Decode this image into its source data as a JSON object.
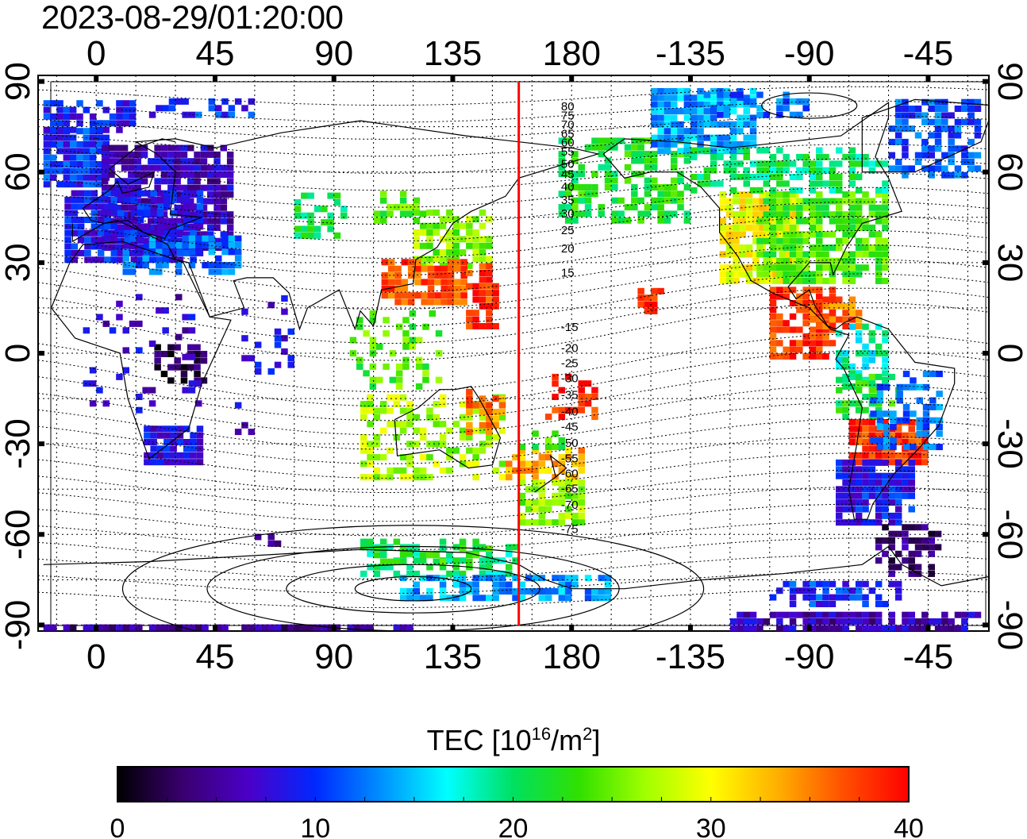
{
  "timestamp": "2023-08-29/01:20:00",
  "map": {
    "lon_ticks": [
      "0",
      "45",
      "90",
      "135",
      "180",
      "-135",
      "-90",
      "-45"
    ],
    "lat_ticks": [
      "90",
      "60",
      "30",
      "0",
      "-30",
      "-60",
      "-90"
    ],
    "lon_range": [
      -22,
      338
    ],
    "lat_range": [
      -92,
      92
    ],
    "red_meridian_lon": 160,
    "contour_labels": [
      "80",
      "75",
      "70",
      "65",
      "60",
      "55",
      "50",
      "45",
      "40",
      "35",
      "30",
      "25",
      "20",
      "15",
      "-15",
      "-20",
      "-25",
      "-30",
      "-35",
      "-40",
      "-45",
      "-50",
      "-55",
      "-60",
      "-65",
      "-70",
      "-75"
    ],
    "grid": true,
    "colors": {
      "meridian": "#ff0000",
      "contour": "#000000"
    }
  },
  "colorbar": {
    "title_main": "TEC  [10",
    "title_exp1": "16",
    "title_mid": "/m",
    "title_exp2": "2",
    "title_end": "]",
    "min": 0,
    "max": 40,
    "tick_labels": [
      "0",
      "10",
      "20",
      "30",
      "40"
    ],
    "colormap": [
      "#000000",
      "#3a0070",
      "#4b00c8",
      "#0028ff",
      "#0090ff",
      "#00ffff",
      "#00e060",
      "#30e000",
      "#a0ff00",
      "#ffff00",
      "#ffb000",
      "#ff5000",
      "#ff0000"
    ]
  }
}
